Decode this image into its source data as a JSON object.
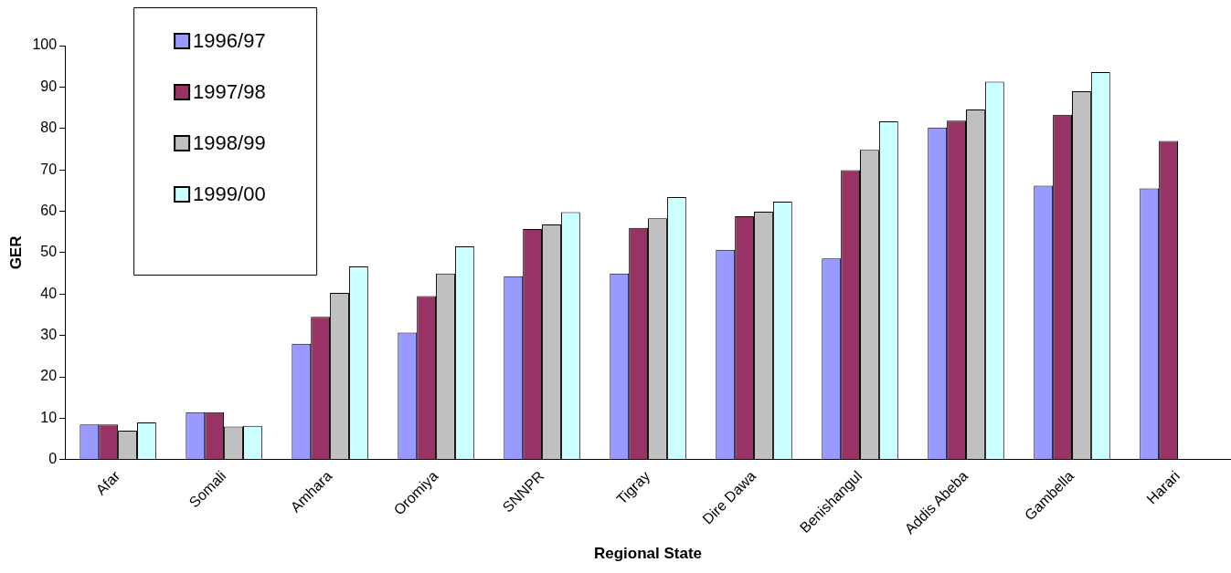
{
  "chart_data": {
    "type": "bar",
    "xlabel": "Regional State",
    "ylabel": "GER",
    "categories": [
      "Afar",
      "Somali",
      "Amhara",
      "Oromiya",
      "SNNPR",
      "Tigray",
      "Dire Dawa",
      "Benishangul",
      "Addis Abeba",
      "Gambella",
      "Harari"
    ],
    "series": [
      {
        "name": "1996/97",
        "color": "#9999ff",
        "values": [
          8.5,
          11.5,
          28,
          30.7,
          44.3,
          45,
          50.7,
          48.6,
          80.2,
          66.2,
          65.5
        ]
      },
      {
        "name": "1997/98",
        "color": "#993366",
        "values": [
          8.5,
          11.5,
          34.5,
          39.5,
          55.7,
          56,
          58.8,
          69.9,
          81.9,
          83.3,
          77
        ]
      },
      {
        "name": "1998/99",
        "color": "#c0c0c0",
        "values": [
          7,
          8,
          40.3,
          45,
          56.8,
          58.3,
          59.9,
          74.8,
          84.6,
          89,
          null
        ]
      },
      {
        "name": "1999/00",
        "color": "#ccffff",
        "values": [
          9,
          8.2,
          46.7,
          51.5,
          59.8,
          63.4,
          62.3,
          81.7,
          91.3,
          93.6,
          null
        ]
      }
    ],
    "ylim": [
      0,
      100
    ],
    "yticks": [
      0,
      10,
      20,
      30,
      40,
      50,
      60,
      70,
      80,
      90,
      100
    ],
    "grid": false,
    "legend": "top left"
  }
}
